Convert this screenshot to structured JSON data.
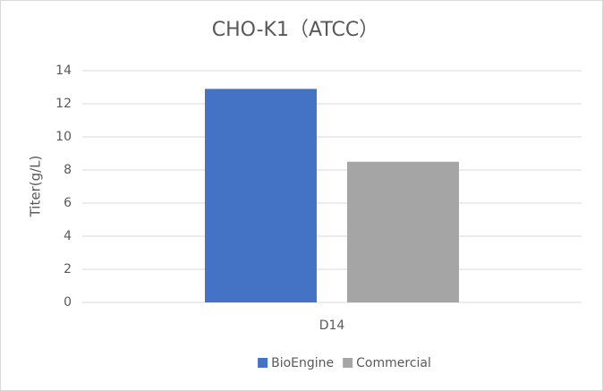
{
  "chart_data": {
    "type": "bar",
    "title": "CHO-K1（ATCC）",
    "y_label": "Titer(g/L)",
    "categories": [
      "D14"
    ],
    "series": [
      {
        "name": "BioEngine",
        "color": "#4472c4",
        "values": [
          12.9
        ]
      },
      {
        "name": "Commercial",
        "color": "#a5a5a5",
        "values": [
          8.5
        ]
      }
    ],
    "ylim": [
      0,
      14
    ],
    "yticks": [
      0,
      2,
      4,
      6,
      8,
      10,
      12,
      14
    ],
    "grid": true,
    "legend": "bottom"
  }
}
